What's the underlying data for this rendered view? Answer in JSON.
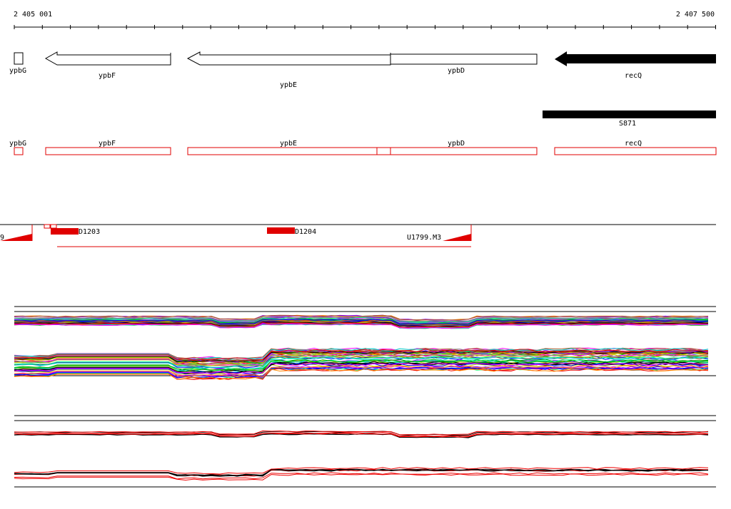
{
  "ruler": {
    "start": "2 405 001",
    "end": "2 407 500"
  },
  "genes": [
    "ypbG",
    "ypbF",
    "ypbE",
    "ypbD",
    "recQ"
  ],
  "operon": "S871",
  "cds": [
    "ypbG",
    "ypbF",
    "ypbE",
    "ypbD",
    "recQ"
  ],
  "features": [
    "9",
    "D1203",
    "D1204",
    "U1799.M3"
  ]
}
